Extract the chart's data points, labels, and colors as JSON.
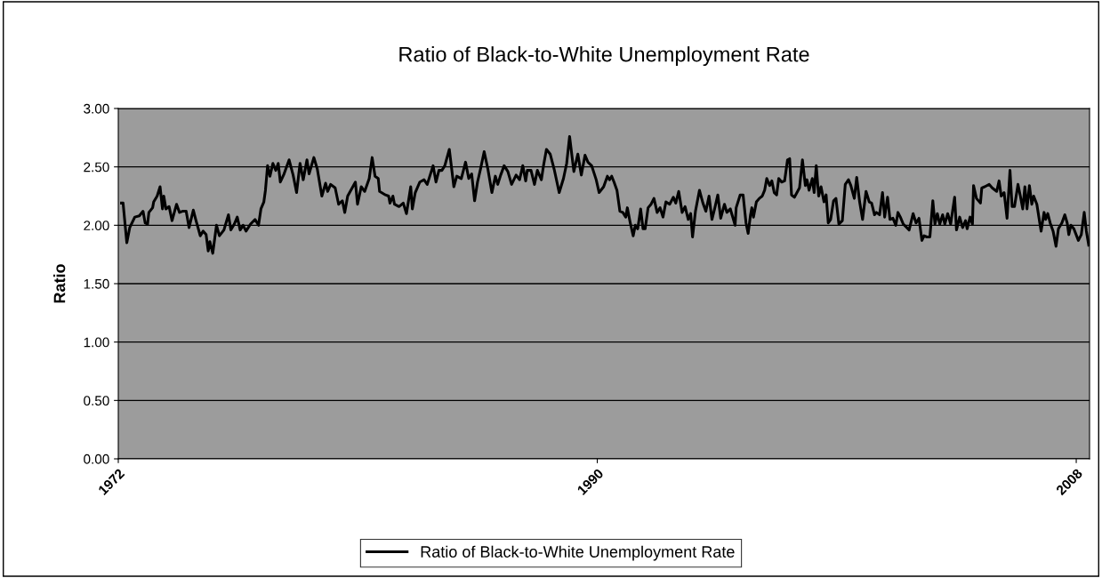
{
  "chart_data": {
    "type": "line",
    "title": "Ratio of Black-to-White Unemployment Rate",
    "ylabel": "Ratio",
    "x": [
      1972.12,
      1972.18,
      1972.32,
      1972.43,
      1972.62,
      1972.79,
      1972.93,
      1973.01,
      1973.1,
      1973.15,
      1973.29,
      1973.33,
      1973.46,
      1973.57,
      1973.66,
      1973.71,
      1973.79,
      1973.91,
      1974.02,
      1974.19,
      1974.3,
      1974.41,
      1974.55,
      1974.66,
      1974.82,
      1974.91,
      1975.08,
      1975.19,
      1975.3,
      1975.38,
      1975.44,
      1975.55,
      1975.69,
      1975.8,
      1975.97,
      1976.14,
      1976.23,
      1976.36,
      1976.47,
      1976.58,
      1976.69,
      1976.8,
      1976.97,
      1977.14,
      1977.27,
      1977.36,
      1977.47,
      1977.53,
      1977.61,
      1977.7,
      1977.81,
      1977.92,
      1978.01,
      1978.09,
      1978.23,
      1978.42,
      1978.57,
      1978.7,
      1978.83,
      1978.95,
      1979.09,
      1979.17,
      1979.35,
      1979.48,
      1979.65,
      1979.79,
      1979.87,
      1979.98,
      1980.15,
      1980.28,
      1980.42,
      1980.51,
      1980.62,
      1980.91,
      1980.99,
      1981.13,
      1981.26,
      1981.43,
      1981.54,
      1981.65,
      1981.77,
      1981.82,
      1982.04,
      1982.16,
      1982.21,
      1982.32,
      1982.38,
      1982.55,
      1982.71,
      1982.83,
      1982.99,
      1983.05,
      1983.16,
      1983.33,
      1983.49,
      1983.61,
      1983.83,
      1983.94,
      1984.05,
      1984.16,
      1984.27,
      1984.44,
      1984.61,
      1984.72,
      1984.89,
      1985.05,
      1985.17,
      1985.28,
      1985.39,
      1985.5,
      1985.61,
      1985.75,
      1985.89,
      1986.04,
      1986.17,
      1986.26,
      1986.37,
      1986.5,
      1986.64,
      1986.78,
      1986.95,
      1987.08,
      1987.2,
      1987.31,
      1987.37,
      1987.51,
      1987.64,
      1987.75,
      1987.9,
      1987.98,
      1988.09,
      1988.23,
      1988.38,
      1988.57,
      1988.73,
      1988.85,
      1988.96,
      1989.12,
      1989.27,
      1989.4,
      1989.54,
      1989.65,
      1989.79,
      1989.96,
      1990.07,
      1990.24,
      1990.38,
      1990.46,
      1990.54,
      1990.63,
      1990.74,
      1990.85,
      1990.96,
      1991.07,
      1991.13,
      1991.24,
      1991.35,
      1991.43,
      1991.52,
      1991.63,
      1991.72,
      1991.8,
      1991.91,
      1992.02,
      1992.13,
      1992.25,
      1992.36,
      1992.47,
      1992.58,
      1992.72,
      1992.86,
      1992.95,
      1993.06,
      1993.19,
      1993.3,
      1993.42,
      1993.51,
      1993.58,
      1993.69,
      1993.84,
      1993.97,
      1994.08,
      1994.2,
      1994.31,
      1994.42,
      1994.53,
      1994.64,
      1994.78,
      1994.87,
      1995.0,
      1995.09,
      1995.18,
      1995.22,
      1995.37,
      1995.48,
      1995.59,
      1995.67,
      1995.76,
      1995.81,
      1995.87,
      1995.98,
      1996.09,
      1996.2,
      1996.29,
      1996.37,
      1996.48,
      1996.56,
      1996.65,
      1996.74,
      1996.82,
      1996.93,
      1997.04,
      1997.15,
      1997.23,
      1997.3,
      1997.41,
      1997.6,
      1997.71,
      1997.82,
      1997.88,
      1997.96,
      1998.08,
      1998.15,
      1998.23,
      1998.32,
      1998.41,
      1998.52,
      1998.6,
      1998.68,
      1998.77,
      1998.88,
      1998.97,
      1999.08,
      1999.21,
      1999.32,
      1999.44,
      1999.53,
      1999.66,
      1999.75,
      1999.86,
      1999.97,
      2000.1,
      2000.22,
      2000.31,
      2000.42,
      2000.49,
      2000.61,
      2000.72,
      2000.8,
      2000.91,
      2001.0,
      2001.11,
      2001.22,
      2001.3,
      2001.39,
      2001.5,
      2001.72,
      2001.87,
      2001.98,
      2002.09,
      2002.2,
      2002.28,
      2002.39,
      2002.5,
      2002.61,
      2002.69,
      2002.78,
      2002.87,
      2002.98,
      2003.06,
      2003.17,
      2003.28,
      2003.43,
      2003.5,
      2003.62,
      2003.73,
      2003.84,
      2003.9,
      2004.01,
      2004.1,
      2004.14,
      2004.25,
      2004.4,
      2004.45,
      2004.56,
      2004.73,
      2004.84,
      2005.01,
      2005.1,
      2005.18,
      2005.29,
      2005.4,
      2005.51,
      2005.59,
      2005.68,
      2005.81,
      2005.9,
      2005.99,
      2006.07,
      2006.15,
      2006.24,
      2006.33,
      2006.4,
      2006.52,
      2006.63,
      2006.68,
      2006.79,
      2006.85,
      2006.93,
      2007.02,
      2007.13,
      2007.24,
      2007.33,
      2007.46,
      2007.57,
      2007.66,
      2007.72,
      2007.8,
      2007.91,
      2008.08,
      2008.19,
      2008.3,
      2008.38,
      2008.47
    ],
    "series": [
      {
        "name": "Ratio of Black-to-White Unemployment Rate",
        "color": "#000000",
        "values": [
          2.19,
          2.19,
          1.85,
          1.98,
          2.07,
          2.08,
          2.12,
          2.02,
          2.01,
          2.11,
          2.15,
          2.2,
          2.25,
          2.33,
          2.14,
          2.25,
          2.14,
          2.16,
          2.04,
          2.18,
          2.11,
          2.12,
          2.12,
          1.98,
          2.13,
          2.05,
          1.91,
          1.95,
          1.92,
          1.78,
          1.86,
          1.76,
          2.0,
          1.91,
          1.96,
          2.09,
          1.96,
          2.01,
          2.07,
          1.96,
          2.0,
          1.95,
          2.01,
          2.05,
          2.0,
          2.14,
          2.2,
          2.3,
          2.51,
          2.42,
          2.53,
          2.47,
          2.53,
          2.37,
          2.44,
          2.56,
          2.43,
          2.28,
          2.53,
          2.39,
          2.56,
          2.44,
          2.58,
          2.48,
          2.25,
          2.36,
          2.29,
          2.35,
          2.32,
          2.18,
          2.21,
          2.11,
          2.25,
          2.37,
          2.18,
          2.33,
          2.29,
          2.4,
          2.58,
          2.42,
          2.4,
          2.29,
          2.26,
          2.25,
          2.19,
          2.25,
          2.18,
          2.16,
          2.19,
          2.1,
          2.33,
          2.14,
          2.28,
          2.37,
          2.39,
          2.35,
          2.51,
          2.37,
          2.47,
          2.47,
          2.51,
          2.65,
          2.33,
          2.42,
          2.4,
          2.54,
          2.4,
          2.44,
          2.21,
          2.37,
          2.48,
          2.63,
          2.48,
          2.28,
          2.42,
          2.35,
          2.43,
          2.51,
          2.46,
          2.35,
          2.43,
          2.39,
          2.51,
          2.38,
          2.47,
          2.47,
          2.35,
          2.47,
          2.39,
          2.51,
          2.65,
          2.61,
          2.48,
          2.28,
          2.4,
          2.53,
          2.76,
          2.46,
          2.61,
          2.43,
          2.6,
          2.54,
          2.51,
          2.39,
          2.28,
          2.33,
          2.42,
          2.39,
          2.42,
          2.37,
          2.3,
          2.12,
          2.11,
          2.07,
          2.15,
          2.02,
          1.91,
          2.0,
          1.97,
          2.14,
          1.97,
          1.97,
          2.15,
          2.18,
          2.23,
          2.11,
          2.15,
          2.07,
          2.2,
          2.18,
          2.24,
          2.19,
          2.29,
          2.11,
          2.16,
          2.05,
          2.1,
          1.9,
          2.12,
          2.3,
          2.19,
          2.12,
          2.25,
          2.05,
          2.15,
          2.26,
          2.06,
          2.18,
          2.11,
          2.14,
          2.07,
          2.0,
          2.15,
          2.26,
          2.26,
          2.02,
          1.93,
          2.09,
          2.15,
          2.07,
          2.2,
          2.23,
          2.25,
          2.3,
          2.4,
          2.34,
          2.38,
          2.28,
          2.26,
          2.4,
          2.37,
          2.38,
          2.56,
          2.57,
          2.26,
          2.24,
          2.32,
          2.56,
          2.34,
          2.39,
          2.3,
          2.4,
          2.28,
          2.51,
          2.25,
          2.33,
          2.2,
          2.26,
          2.02,
          2.05,
          2.21,
          2.23,
          2.01,
          2.04,
          2.35,
          2.39,
          2.34,
          2.23,
          2.41,
          2.2,
          2.05,
          2.29,
          2.2,
          2.19,
          2.09,
          2.11,
          2.09,
          2.28,
          2.07,
          2.24,
          2.05,
          2.06,
          2.0,
          2.11,
          2.07,
          2.01,
          1.96,
          2.1,
          2.02,
          2.06,
          1.87,
          1.91,
          1.9,
          1.9,
          2.21,
          2.01,
          2.1,
          2.01,
          2.09,
          2.01,
          2.1,
          2.01,
          2.24,
          1.96,
          2.07,
          1.98,
          2.04,
          1.97,
          2.07,
          2.01,
          2.34,
          2.23,
          2.19,
          2.32,
          2.33,
          2.35,
          2.32,
          2.29,
          2.38,
          2.25,
          2.28,
          2.06,
          2.47,
          2.16,
          2.16,
          2.35,
          2.25,
          2.14,
          2.33,
          2.14,
          2.34,
          2.18,
          2.25,
          2.18,
          2.02,
          1.95,
          2.11,
          2.05,
          2.1,
          2.02,
          1.95,
          1.82,
          1.97,
          2.02,
          2.09,
          2.02,
          1.92,
          2.0,
          1.97,
          1.87,
          1.92,
          2.11,
          1.95,
          1.83
        ]
      }
    ],
    "xlim": [
      1972,
      2008.5
    ],
    "xticks": [
      1972,
      1990,
      2008
    ],
    "ylim": [
      0,
      3
    ],
    "yticks": [
      {
        "value": 0,
        "label": "0.00"
      },
      {
        "value": 0.5,
        "label": "0.50"
      },
      {
        "value": 1,
        "label": "1.00"
      },
      {
        "value": 1.5,
        "label": "1.50"
      },
      {
        "value": 2,
        "label": "2.00"
      },
      {
        "value": 2.5,
        "label": "2.50"
      },
      {
        "value": 3,
        "label": "3.00"
      }
    ],
    "grid": "y",
    "legend": "bottom",
    "marker": "none",
    "line_style": "solid"
  }
}
